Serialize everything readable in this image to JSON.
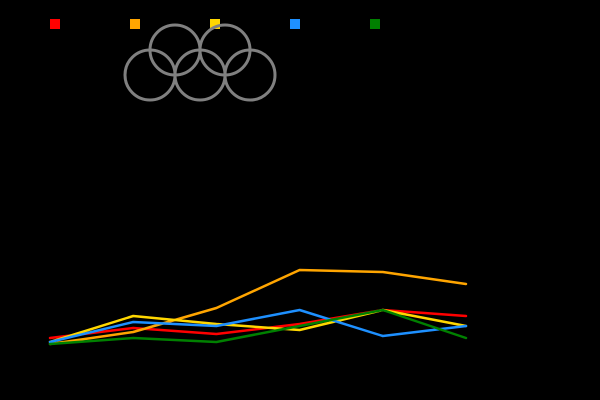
{
  "chart_data": {
    "type": "line",
    "title": "",
    "xlabel": "",
    "ylabel": "",
    "x": [
      0,
      1,
      2,
      3,
      4,
      5
    ],
    "ylim": [
      0,
      100
    ],
    "grid": false,
    "legend_position": "top-left",
    "background": "#000000",
    "series": [
      {
        "name": "",
        "color": "#ff0000",
        "values": [
          16,
          21,
          18,
          23,
          30,
          27
        ]
      },
      {
        "name": "",
        "color": "#ffa500",
        "values": [
          13,
          19,
          31,
          50,
          49,
          43
        ]
      },
      {
        "name": "",
        "color": "#ffd700",
        "values": [
          14,
          27,
          23,
          20,
          30,
          22
        ]
      },
      {
        "name": "",
        "color": "#1e90ff",
        "values": [
          14,
          24,
          22,
          30,
          17,
          22
        ]
      },
      {
        "name": "",
        "color": "#008000",
        "values": [
          13,
          16,
          14,
          22,
          30,
          16
        ]
      }
    ],
    "decoration": {
      "name": "olympic-rings-icon",
      "color": "#808080"
    }
  }
}
